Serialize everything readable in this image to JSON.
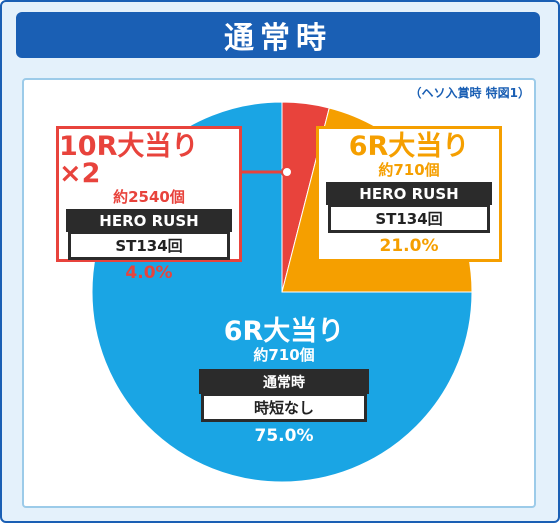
{
  "header": {
    "title": "通常時"
  },
  "note": "（ヘソ入賞時 特図1）",
  "colors": {
    "red": "#e8433c",
    "orange": "#f59f00",
    "blue": "#1aa5e4",
    "frame": "#1a5fb4"
  },
  "chart_data": {
    "type": "pie",
    "slices": [
      {
        "label": "10R大当り×2",
        "sub": "約2540個",
        "mode": "HERO RUSH",
        "detail": "ST134回",
        "value": 4.0,
        "percent_label": "4.0%",
        "color": "#e8433c"
      },
      {
        "label": "6R大当り",
        "sub": "約710個",
        "mode": "HERO RUSH",
        "detail": "ST134回",
        "value": 21.0,
        "percent_label": "21.0%",
        "color": "#f59f00"
      },
      {
        "label": "6R大当り",
        "sub": "約710個",
        "mode": "通常時",
        "detail": "時短なし",
        "value": 75.0,
        "percent_label": "75.0%",
        "color": "#1aa5e4"
      }
    ]
  }
}
